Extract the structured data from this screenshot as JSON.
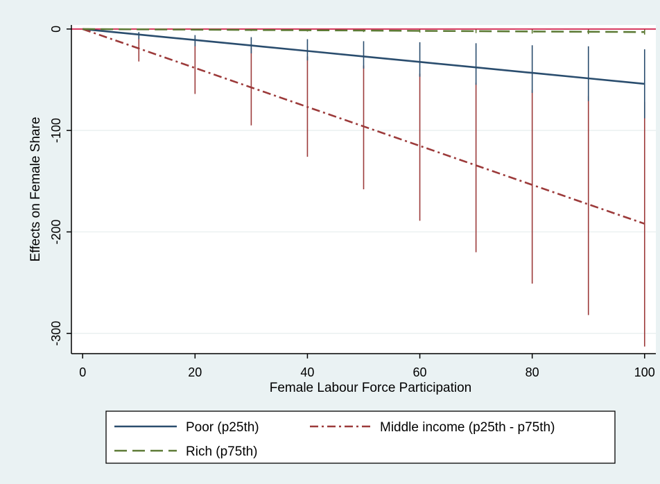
{
  "chart_data": {
    "type": "line",
    "title": "",
    "xlabel": "Female Labour Force Participation",
    "ylabel": "Effects on Female Share",
    "xlim": [
      -2,
      102
    ],
    "ylim": [
      -320,
      4
    ],
    "xticks": [
      0,
      20,
      40,
      60,
      80,
      100
    ],
    "yticks": [
      0,
      -100,
      -200,
      -300
    ],
    "reference_line": {
      "y": 0,
      "color": "#d0204a"
    },
    "grid": "horizontal",
    "legend_position": "bottom",
    "series": [
      {
        "name": "Poor (p25th)",
        "style": "solid",
        "color": "#2a4d6e",
        "ci_color": "#2a4d6e",
        "x": [
          0,
          10,
          20,
          30,
          40,
          50,
          60,
          70,
          80,
          90,
          100
        ],
        "y": [
          0,
          -5.4,
          -10.8,
          -16.2,
          -21.6,
          -27.0,
          -32.4,
          -37.8,
          -43.2,
          -48.6,
          -54.0
        ],
        "ci_low": [
          0,
          -10,
          -17,
          -24,
          -31,
          -39,
          -47,
          -55,
          -63,
          -71,
          -88
        ],
        "ci_high": [
          0,
          -3,
          -6,
          -8,
          -10,
          -12,
          -13,
          -14,
          -16,
          -17,
          -20
        ]
      },
      {
        "name": "Middle income (p25th - p75th)",
        "style": "dashdot",
        "color": "#9c3a3a",
        "ci_color": "#9c3a3a",
        "x": [
          0,
          10,
          20,
          30,
          40,
          50,
          60,
          70,
          80,
          90,
          100
        ],
        "y": [
          0,
          -19.2,
          -38.4,
          -57.6,
          -76.8,
          -96.0,
          -115.2,
          -134.4,
          -153.6,
          -172.8,
          -192.0
        ],
        "ci_low": [
          0,
          -32,
          -64,
          -95,
          -126,
          -158,
          -189,
          -220,
          -251,
          -282,
          -313
        ],
        "ci_high": [
          0,
          -6,
          -12,
          -18,
          -27,
          -36,
          -44,
          -53,
          -60,
          -66,
          -72
        ]
      },
      {
        "name": "Rich (p75th)",
        "style": "dashed",
        "color": "#5d7a35",
        "ci_color": "#5d7a35",
        "x": [
          0,
          10,
          20,
          30,
          40,
          50,
          60,
          70,
          80,
          90,
          100
        ],
        "y": [
          0,
          -0.3,
          -0.6,
          -0.9,
          -1.2,
          -1.5,
          -1.8,
          -2.1,
          -2.4,
          -2.7,
          -3.0
        ],
        "ci_low": [
          0,
          -1,
          -1.5,
          -2,
          -2.5,
          -3,
          -3.5,
          -4,
          -4.5,
          -5,
          -5.5
        ],
        "ci_high": [
          0,
          0,
          0,
          0,
          0,
          0,
          0,
          0,
          0,
          0,
          0
        ]
      }
    ],
    "legend_order": [
      0,
      1,
      2
    ]
  },
  "colors": {
    "outer_bg": "#eaf2f3",
    "plot_bg": "#ffffff",
    "grid": "#e6eeee",
    "axis": "#000000"
  }
}
